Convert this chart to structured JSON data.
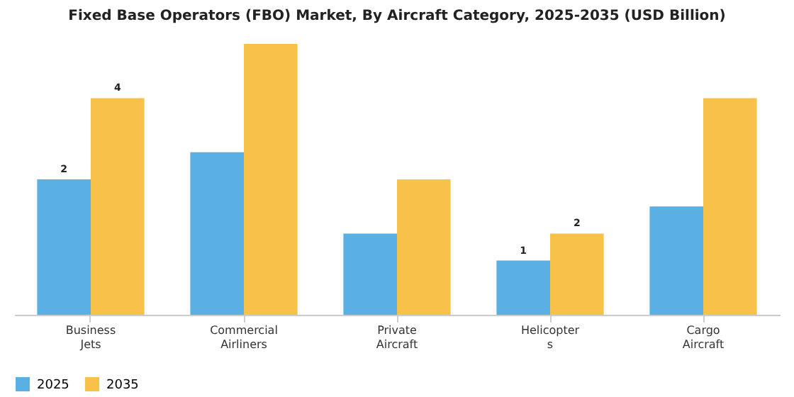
{
  "chart_data": {
    "type": "bar",
    "title": "Fixed Base Operators (FBO) Market, By Aircraft Category, 2025-2035 (USD Billion)",
    "categories": [
      "Business\nJets",
      "Commercial\nAirliners",
      "Private\nAircraft",
      "Helicopter\ns",
      "Cargo\nAircraft"
    ],
    "ylim": [
      0,
      5
    ],
    "tick_labels": "x",
    "legend": "bottom",
    "grid": false,
    "series": [
      {
        "name": "2025",
        "color": "#5aafe3",
        "values": [
          2.5,
          3.0,
          1.5,
          1.0,
          2.0
        ],
        "value_labels": [
          "2",
          null,
          null,
          "1",
          null
        ]
      },
      {
        "name": "2035",
        "color": "#f7c14a",
        "values": [
          4.0,
          5.0,
          2.5,
          1.5,
          4.0
        ],
        "value_labels": [
          "4",
          null,
          null,
          "2",
          null
        ]
      }
    ]
  }
}
